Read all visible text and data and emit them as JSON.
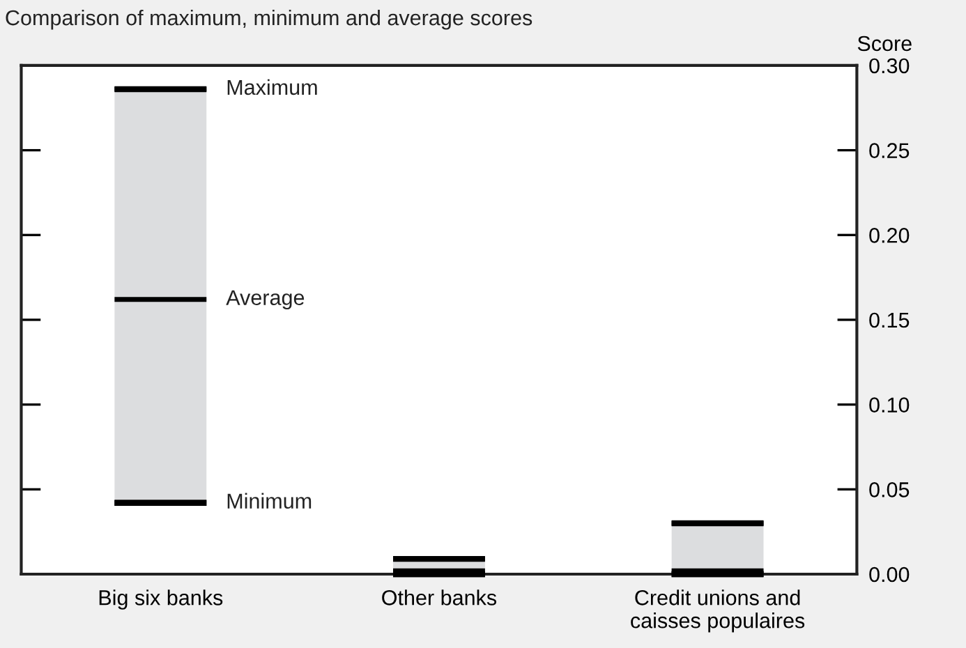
{
  "chart_data": {
    "type": "box",
    "title": "Comparison of maximum, minimum and average scores",
    "ylabel": "Score",
    "categories": [
      "Big six banks",
      "Other banks",
      "Credit unions and caisses populaires"
    ],
    "boxes": [
      {
        "low": 0.042,
        "q1": 0.042,
        "median": 0.162,
        "q3": 0.286,
        "high": 0.286
      },
      {
        "low": 0.0,
        "q1": 0.0,
        "median": 0.002,
        "q3": 0.009,
        "high": 0.009
      },
      {
        "low": 0.0,
        "q1": 0.0,
        "median": 0.002,
        "q3": 0.03,
        "high": 0.03
      }
    ],
    "color": "#dcdddf",
    "ylim": [
      0,
      0.3
    ],
    "yticks": [
      {
        "value": 0,
        "label": "0.00"
      },
      {
        "value": 0.05,
        "label": "0.05"
      },
      {
        "value": 0.1,
        "label": "0.10"
      },
      {
        "value": 0.15,
        "label": "0.15"
      },
      {
        "value": 0.2,
        "label": "0.20"
      },
      {
        "value": 0.25,
        "label": "0.25"
      },
      {
        "value": 0.3,
        "label": "0.30"
      }
    ],
    "annotations": [
      "Maximum",
      "Average",
      "Minimum"
    ],
    "grid": false,
    "legend": false
  }
}
